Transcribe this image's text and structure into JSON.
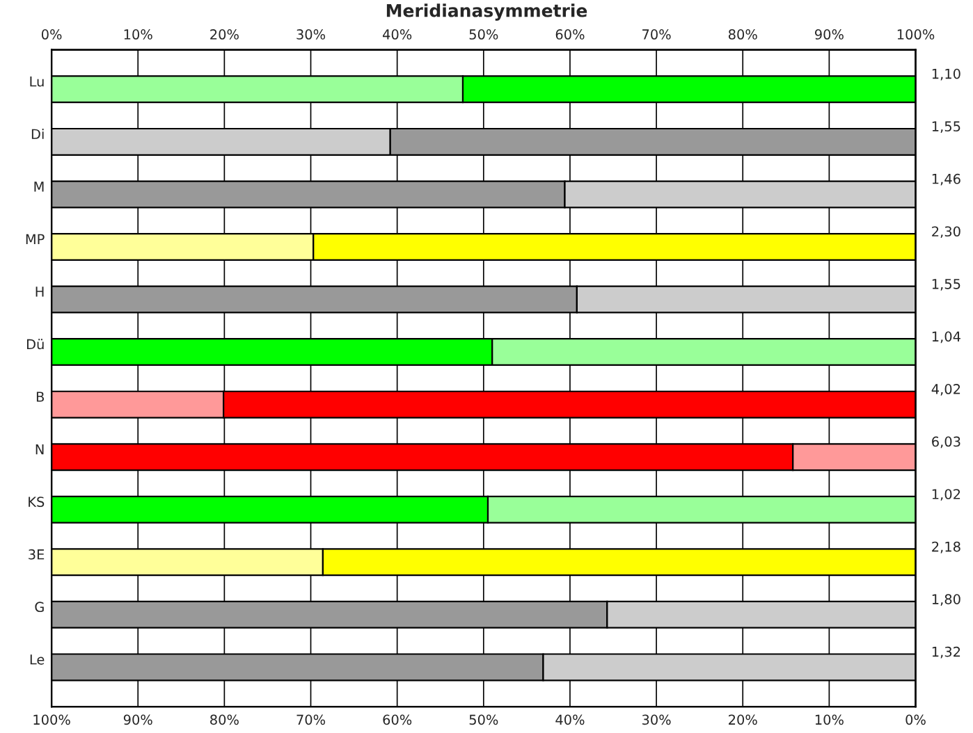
{
  "chart_data": {
    "type": "bar",
    "orientation": "horizontal",
    "stacked": true,
    "title": "Meridianasymmetrie",
    "categories": [
      "Lu",
      "Di",
      "M",
      "MP",
      "H",
      "Dü",
      "B",
      "N",
      "KS",
      "3E",
      "G",
      "Le"
    ],
    "series": [
      {
        "colors": [
          "#99ff99",
          "#cccccc",
          "#999999",
          "#ffff99",
          "#999999",
          "#00ff00",
          "#ff9999",
          "#ff0000",
          "#00ff00",
          "#ffff99",
          "#999999",
          "#999999"
        ],
        "values": [
          47.6,
          39.2,
          59.4,
          30.3,
          60.8,
          51.0,
          19.9,
          85.8,
          50.5,
          31.4,
          64.3,
          56.9
        ]
      },
      {
        "colors": [
          "#00ff00",
          "#999999",
          "#cccccc",
          "#ffff00",
          "#cccccc",
          "#99ff99",
          "#ff0000",
          "#ff9999",
          "#99ff99",
          "#ffff00",
          "#cccccc",
          "#cccccc"
        ],
        "values": [
          52.4,
          60.8,
          40.6,
          69.7,
          39.2,
          49.0,
          80.1,
          14.2,
          49.5,
          68.6,
          35.7,
          43.1
        ]
      }
    ],
    "annotations": [
      "1,10",
      "1,55",
      "1,46",
      "2,30",
      "1,55",
      "1,04",
      "4,02",
      "6,03",
      "1,02",
      "2,18",
      "1,80",
      "1,32"
    ],
    "x2lim": [
      0,
      100
    ],
    "x2ticks": [
      {
        "value": 0,
        "label": "0%"
      },
      {
        "value": 10,
        "label": "10%"
      },
      {
        "value": 20,
        "label": "20%"
      },
      {
        "value": 30,
        "label": "30%"
      },
      {
        "value": 40,
        "label": "40%"
      },
      {
        "value": 50,
        "label": "50%"
      },
      {
        "value": 60,
        "label": "60%"
      },
      {
        "value": 70,
        "label": "70%"
      },
      {
        "value": 80,
        "label": "80%"
      },
      {
        "value": 90,
        "label": "90%"
      },
      {
        "value": 100,
        "label": "100%"
      }
    ],
    "xlim": [
      100,
      0
    ],
    "xticks": [
      {
        "value": 100,
        "label": "100%"
      },
      {
        "value": 90,
        "label": "90%"
      },
      {
        "value": 80,
        "label": "80%"
      },
      {
        "value": 70,
        "label": "70%"
      },
      {
        "value": 60,
        "label": "60%"
      },
      {
        "value": 50,
        "label": "50%"
      },
      {
        "value": 40,
        "label": "40%"
      },
      {
        "value": 30,
        "label": "30%"
      },
      {
        "value": 20,
        "label": "20%"
      },
      {
        "value": 10,
        "label": "10%"
      },
      {
        "value": 0,
        "label": "0%"
      }
    ],
    "grid": "x",
    "legend": false
  }
}
